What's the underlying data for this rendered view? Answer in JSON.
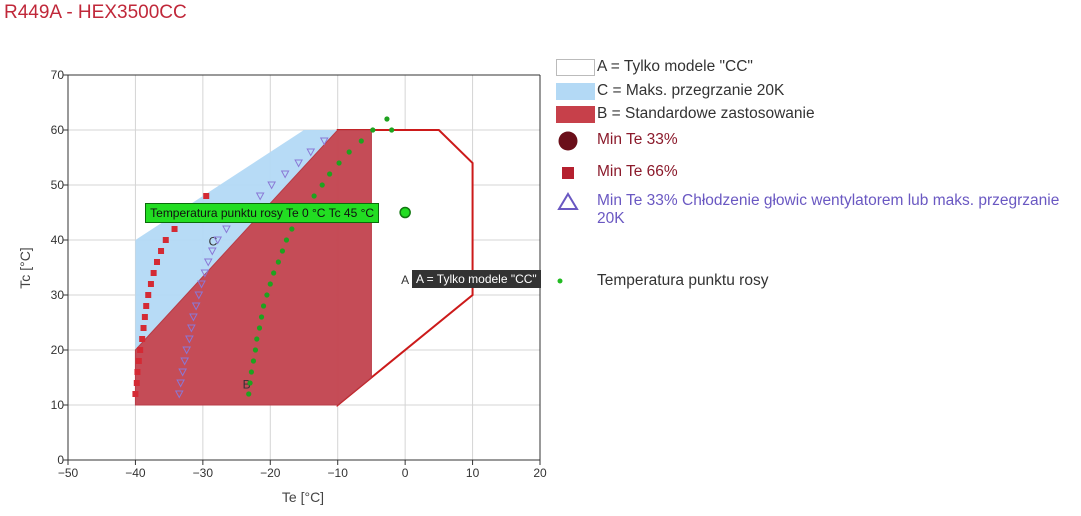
{
  "title": "R449A - HEX3500CC",
  "colors": {
    "title": "#c0283a",
    "region_A_fill": "#ffffff",
    "region_A_stroke": "#cc1a1a",
    "region_C_fill": "#b3d9f5",
    "region_B_fill": "#c7404a",
    "min33": "#6b0f1a",
    "min66": "#cc2233",
    "cooling": "#7b68c8",
    "dew": "#1fa21f",
    "tip_green": "#22dd22"
  },
  "chart_data": {
    "type": "scatter",
    "xlabel": "Te [°C]",
    "ylabel": "Tc [°C]",
    "xlim": [
      -50,
      20
    ],
    "ylim": [
      0,
      70
    ],
    "x_ticks": [
      -50,
      -40,
      -30,
      -20,
      -10,
      0,
      10,
      20
    ],
    "y_ticks": [
      0,
      10,
      20,
      30,
      40,
      50,
      60,
      70
    ],
    "grid": true,
    "legend_position": "right",
    "regions": [
      {
        "id": "A",
        "label": "A = Tylko modele \"CC\"",
        "polygon": [
          [
            -10,
            60
          ],
          [
            5,
            60
          ],
          [
            10,
            54
          ],
          [
            10,
            30
          ],
          [
            -10,
            10
          ]
        ]
      },
      {
        "id": "C",
        "label": "C = Maks. przegrzanie 20K",
        "polygon": [
          [
            -40,
            10
          ],
          [
            -40,
            40
          ],
          [
            -15,
            60
          ],
          [
            -5,
            60
          ],
          [
            -5,
            15
          ],
          [
            -10,
            10
          ]
        ]
      },
      {
        "id": "B",
        "label": "B = Standardowe zastosowanie",
        "polygon": [
          [
            -40,
            10
          ],
          [
            -40,
            20
          ],
          [
            -10,
            60
          ],
          [
            -5,
            60
          ],
          [
            -5,
            15
          ],
          [
            -10,
            10
          ]
        ]
      }
    ],
    "region_labels": [
      {
        "text": "A",
        "x": 0,
        "y": 32
      },
      {
        "text": "C",
        "x": -28.5,
        "y": 39
      },
      {
        "text": "B",
        "x": -23.5,
        "y": 13
      }
    ],
    "series": [
      {
        "name": "Min Te 33%",
        "marker": "circle-large",
        "points": []
      },
      {
        "name": "Min Te 66%",
        "marker": "square",
        "points": [
          [
            -40,
            12
          ],
          [
            -39.8,
            14
          ],
          [
            -39.7,
            16
          ],
          [
            -39.5,
            18
          ],
          [
            -39.3,
            20
          ],
          [
            -39,
            22
          ],
          [
            -38.8,
            24
          ],
          [
            -38.6,
            26
          ],
          [
            -38.4,
            28
          ],
          [
            -38.1,
            30
          ],
          [
            -37.7,
            32
          ],
          [
            -37.3,
            34
          ],
          [
            -36.8,
            36
          ],
          [
            -36.2,
            38
          ],
          [
            -35.5,
            40
          ],
          [
            -34.2,
            42
          ],
          [
            -33,
            44
          ],
          [
            -31.5,
            46
          ],
          [
            -29.5,
            48
          ]
        ]
      },
      {
        "name": "Min Te 33% Chłodzenie głowic wentylatorem lub maks. przegrzanie 20K",
        "marker": "triangle-down",
        "points": [
          [
            -33.5,
            12
          ],
          [
            -33.3,
            14
          ],
          [
            -33,
            16
          ],
          [
            -32.7,
            18
          ],
          [
            -32.4,
            20
          ],
          [
            -32,
            22
          ],
          [
            -31.7,
            24
          ],
          [
            -31.4,
            26
          ],
          [
            -31,
            28
          ],
          [
            -30.6,
            30
          ],
          [
            -30.2,
            32
          ],
          [
            -29.7,
            34
          ],
          [
            -29.2,
            36
          ],
          [
            -28.6,
            38
          ],
          [
            -27.8,
            40
          ],
          [
            -26.5,
            42
          ],
          [
            -25,
            44
          ],
          [
            -23.5,
            46
          ],
          [
            -21.5,
            48
          ],
          [
            -19.8,
            50
          ],
          [
            -17.8,
            52
          ],
          [
            -15.8,
            54
          ],
          [
            -14,
            56
          ],
          [
            -12,
            58
          ]
        ]
      },
      {
        "name": "Temperatura punktu rosy",
        "marker": "dot",
        "points": [
          [
            -23.2,
            12
          ],
          [
            -23,
            14
          ],
          [
            -22.8,
            16
          ],
          [
            -22.5,
            18
          ],
          [
            -22.2,
            20
          ],
          [
            -22,
            22
          ],
          [
            -21.6,
            24
          ],
          [
            -21.3,
            26
          ],
          [
            -21,
            28
          ],
          [
            -20.5,
            30
          ],
          [
            -20,
            32
          ],
          [
            -19.5,
            34
          ],
          [
            -18.8,
            36
          ],
          [
            -18.2,
            38
          ],
          [
            -17.6,
            40
          ],
          [
            -16.8,
            42
          ],
          [
            -15.8,
            44
          ],
          [
            -14.6,
            46
          ],
          [
            -13.5,
            48
          ],
          [
            -12.3,
            50
          ],
          [
            -11.2,
            52
          ],
          [
            -9.8,
            54
          ],
          [
            -8.3,
            56
          ],
          [
            -6.5,
            58
          ],
          [
            -4.8,
            60
          ],
          [
            -2.7,
            62
          ],
          [
            -2,
            60
          ]
        ]
      }
    ],
    "highlight_point": {
      "x": 0,
      "y": 45,
      "label": "Temperatura punktu rosy Te 0 °C Tc 45 °C"
    },
    "hover_region_label": "A = Tylko modele \"CC\""
  }
}
